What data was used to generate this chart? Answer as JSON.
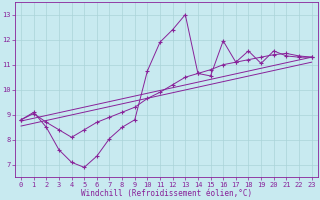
{
  "background_color": "#c8eaf0",
  "line_color": "#882299",
  "marker": "+",
  "xlabel": "Windchill (Refroidissement éolien,°C)",
  "xlim": [
    -0.5,
    23.5
  ],
  "ylim": [
    6.5,
    13.5
  ],
  "yticks": [
    7,
    8,
    9,
    10,
    11,
    12,
    13
  ],
  "xticks": [
    0,
    1,
    2,
    3,
    4,
    5,
    6,
    7,
    8,
    9,
    10,
    11,
    12,
    13,
    14,
    15,
    16,
    17,
    18,
    19,
    20,
    21,
    22,
    23
  ],
  "series_main_x": [
    0,
    1,
    2,
    3,
    4,
    5,
    6,
    7,
    8,
    9,
    10,
    11,
    12,
    13,
    14,
    15,
    16,
    17,
    18,
    19,
    20,
    21,
    22,
    23
  ],
  "series_main_y": [
    8.8,
    9.1,
    8.5,
    7.6,
    7.1,
    6.9,
    7.35,
    8.05,
    8.5,
    8.8,
    10.75,
    11.9,
    12.4,
    13.0,
    10.65,
    10.55,
    11.95,
    11.1,
    11.55,
    11.05,
    11.55,
    11.35,
    11.3,
    11.3
  ],
  "series_smooth_x": [
    0,
    1,
    2,
    3,
    4,
    5,
    6,
    7,
    8,
    9,
    10,
    11,
    12,
    13,
    14,
    15,
    16,
    17,
    18,
    19,
    20,
    21,
    22,
    23
  ],
  "series_smooth_y": [
    8.8,
    9.05,
    8.7,
    8.4,
    8.1,
    8.4,
    8.7,
    8.9,
    9.1,
    9.3,
    9.65,
    9.9,
    10.2,
    10.5,
    10.65,
    10.8,
    11.0,
    11.1,
    11.2,
    11.3,
    11.4,
    11.45,
    11.35,
    11.3
  ],
  "trend1_x": [
    0,
    23
  ],
  "trend1_y": [
    8.75,
    11.3
  ],
  "trend2_x": [
    0,
    23
  ],
  "trend2_y": [
    8.55,
    11.1
  ],
  "tick_fontsize": 5,
  "xlabel_fontsize": 5.5
}
